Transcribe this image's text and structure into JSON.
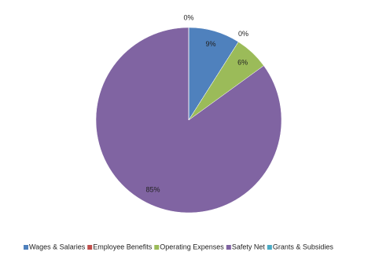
{
  "chart_data": {
    "type": "pie",
    "categories": [
      "Wages & Salaries",
      "Employee Benefits",
      "Operating Expenses",
      "Safety Net",
      "Grants & Subsidies"
    ],
    "values": [
      9,
      0,
      6,
      85,
      0
    ],
    "value_labels": [
      "9%",
      "0%",
      "6%",
      "85%",
      "0%"
    ],
    "colors": [
      "#4f81bd",
      "#c0504d",
      "#9bbb59",
      "#8064a2",
      "#4bacc6"
    ],
    "legend": "bottom"
  }
}
